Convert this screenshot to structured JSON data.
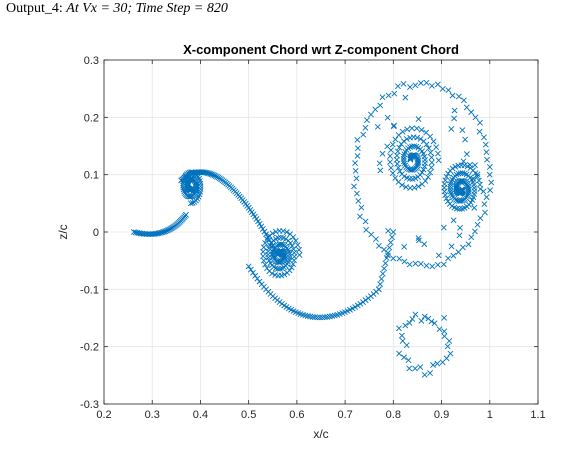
{
  "caption": {
    "prefix": "Output_4: ",
    "detail": "At Vx = 30; Time Step = 820"
  },
  "chart_data": {
    "type": "scatter",
    "title": "X-component Chord wrt Z-component Chord",
    "xlabel": "x/c",
    "ylabel": "z/c",
    "xlim": [
      0.2,
      1.1
    ],
    "ylim": [
      -0.3,
      0.3
    ],
    "xticks": [
      "0.2",
      "0.3",
      "0.4",
      "0.5",
      "0.6",
      "0.7",
      "0.8",
      "0.9",
      "1",
      "1.1"
    ],
    "yticks": [
      "0.3",
      "0.2",
      "0.1",
      "0",
      "-0.1",
      "-0.2",
      "-0.3"
    ],
    "marker": "x",
    "marker_color": "#0072BD",
    "grid": true,
    "features": [
      {
        "kind": "tail_spiral",
        "start": [
          0.262,
          0.0
        ],
        "bend": [
          0.33,
          -0.015
        ],
        "center": [
          0.38,
          0.08
        ],
        "r0": 0.03,
        "turns": 2.2
      },
      {
        "kind": "long_arm",
        "from": [
          0.36,
          0.09
        ],
        "via": [
          0.44,
          0.15
        ],
        "to": [
          0.56,
          -0.04
        ]
      },
      {
        "kind": "spiral",
        "center": [
          0.565,
          -0.04
        ],
        "r0": 0.045,
        "turns": 3.5
      },
      {
        "kind": "arm_lower",
        "from": [
          0.5,
          -0.06
        ],
        "via": [
          0.62,
          -0.215
        ],
        "to": [
          0.77,
          -0.1
        ]
      },
      {
        "kind": "arm_up",
        "from": [
          0.77,
          -0.1
        ],
        "to": [
          0.8,
          0.0
        ]
      },
      {
        "kind": "big_ring",
        "center": [
          0.86,
          0.1
        ],
        "rx": 0.14,
        "ry": 0.16
      },
      {
        "kind": "spiral",
        "center": [
          0.84,
          0.125
        ],
        "r0": 0.06,
        "turns": 3.5
      },
      {
        "kind": "spiral",
        "center": [
          0.94,
          0.075
        ],
        "r0": 0.045,
        "turns": 3.0
      },
      {
        "kind": "ring",
        "center": [
          0.865,
          -0.19
        ],
        "rx": 0.05,
        "ry": 0.05
      }
    ]
  }
}
